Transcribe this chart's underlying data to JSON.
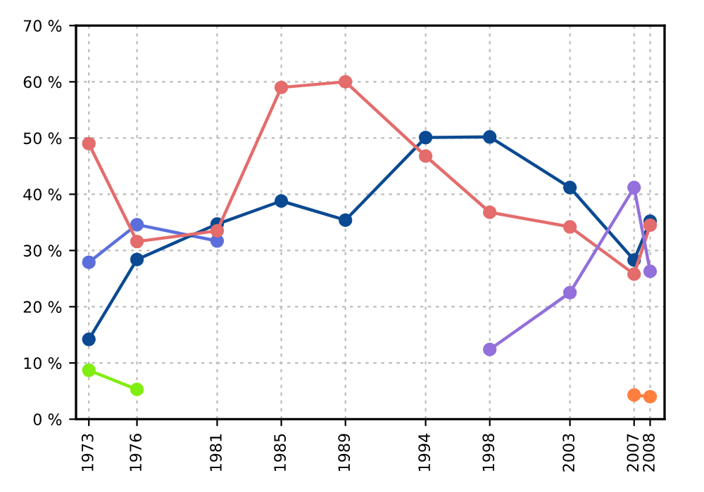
{
  "chart_data": {
    "type": "line",
    "x": [
      1973,
      1976,
      1981,
      1985,
      1989,
      1994,
      1998,
      2003,
      2007,
      2008
    ],
    "series": [
      {
        "color": "#5b6fdc",
        "values": [
          27.9,
          34.6,
          31.7,
          null,
          null,
          null,
          null,
          null,
          null,
          null
        ]
      },
      {
        "color": "#0b4a92",
        "values": [
          14.2,
          28.4,
          34.7,
          38.8,
          35.4,
          50.1,
          50.2,
          41.2,
          28.3,
          35.2
        ]
      },
      {
        "color": "#e46c6c",
        "values": [
          49,
          31.6,
          33.5,
          59,
          60,
          46.8,
          36.8,
          34.2,
          25.8,
          34.5
        ]
      },
      {
        "color": "#80ee10",
        "values": [
          8.7,
          5.3,
          null,
          null,
          null,
          null,
          null,
          null,
          null,
          null
        ]
      },
      {
        "color": "#9370db",
        "values": [
          null,
          null,
          null,
          null,
          null,
          null,
          12.4,
          22.5,
          41.2,
          26.3
        ]
      },
      {
        "color": "#ff7f3f",
        "values": [
          null,
          null,
          null,
          null,
          null,
          null,
          null,
          null,
          4.3,
          4.0
        ]
      }
    ],
    "xlim": [
      1972.2,
      2008.9
    ],
    "xticks": [
      1973,
      1976,
      1981,
      1985,
      1989,
      1994,
      1998,
      2003,
      2007,
      2008
    ],
    "ylim": [
      0,
      70
    ],
    "yticks": [
      {
        "value": 0,
        "label": "0 %"
      },
      {
        "value": 10,
        "label": "10 %"
      },
      {
        "value": 20,
        "label": "20 %"
      },
      {
        "value": 30,
        "label": "30 %"
      },
      {
        "value": 40,
        "label": "40 %"
      },
      {
        "value": 50,
        "label": "50 %"
      },
      {
        "value": 60,
        "label": "60 %"
      },
      {
        "value": 70,
        "label": "70 %"
      }
    ],
    "grid": true,
    "marker": "circle",
    "line_style": "solid"
  }
}
